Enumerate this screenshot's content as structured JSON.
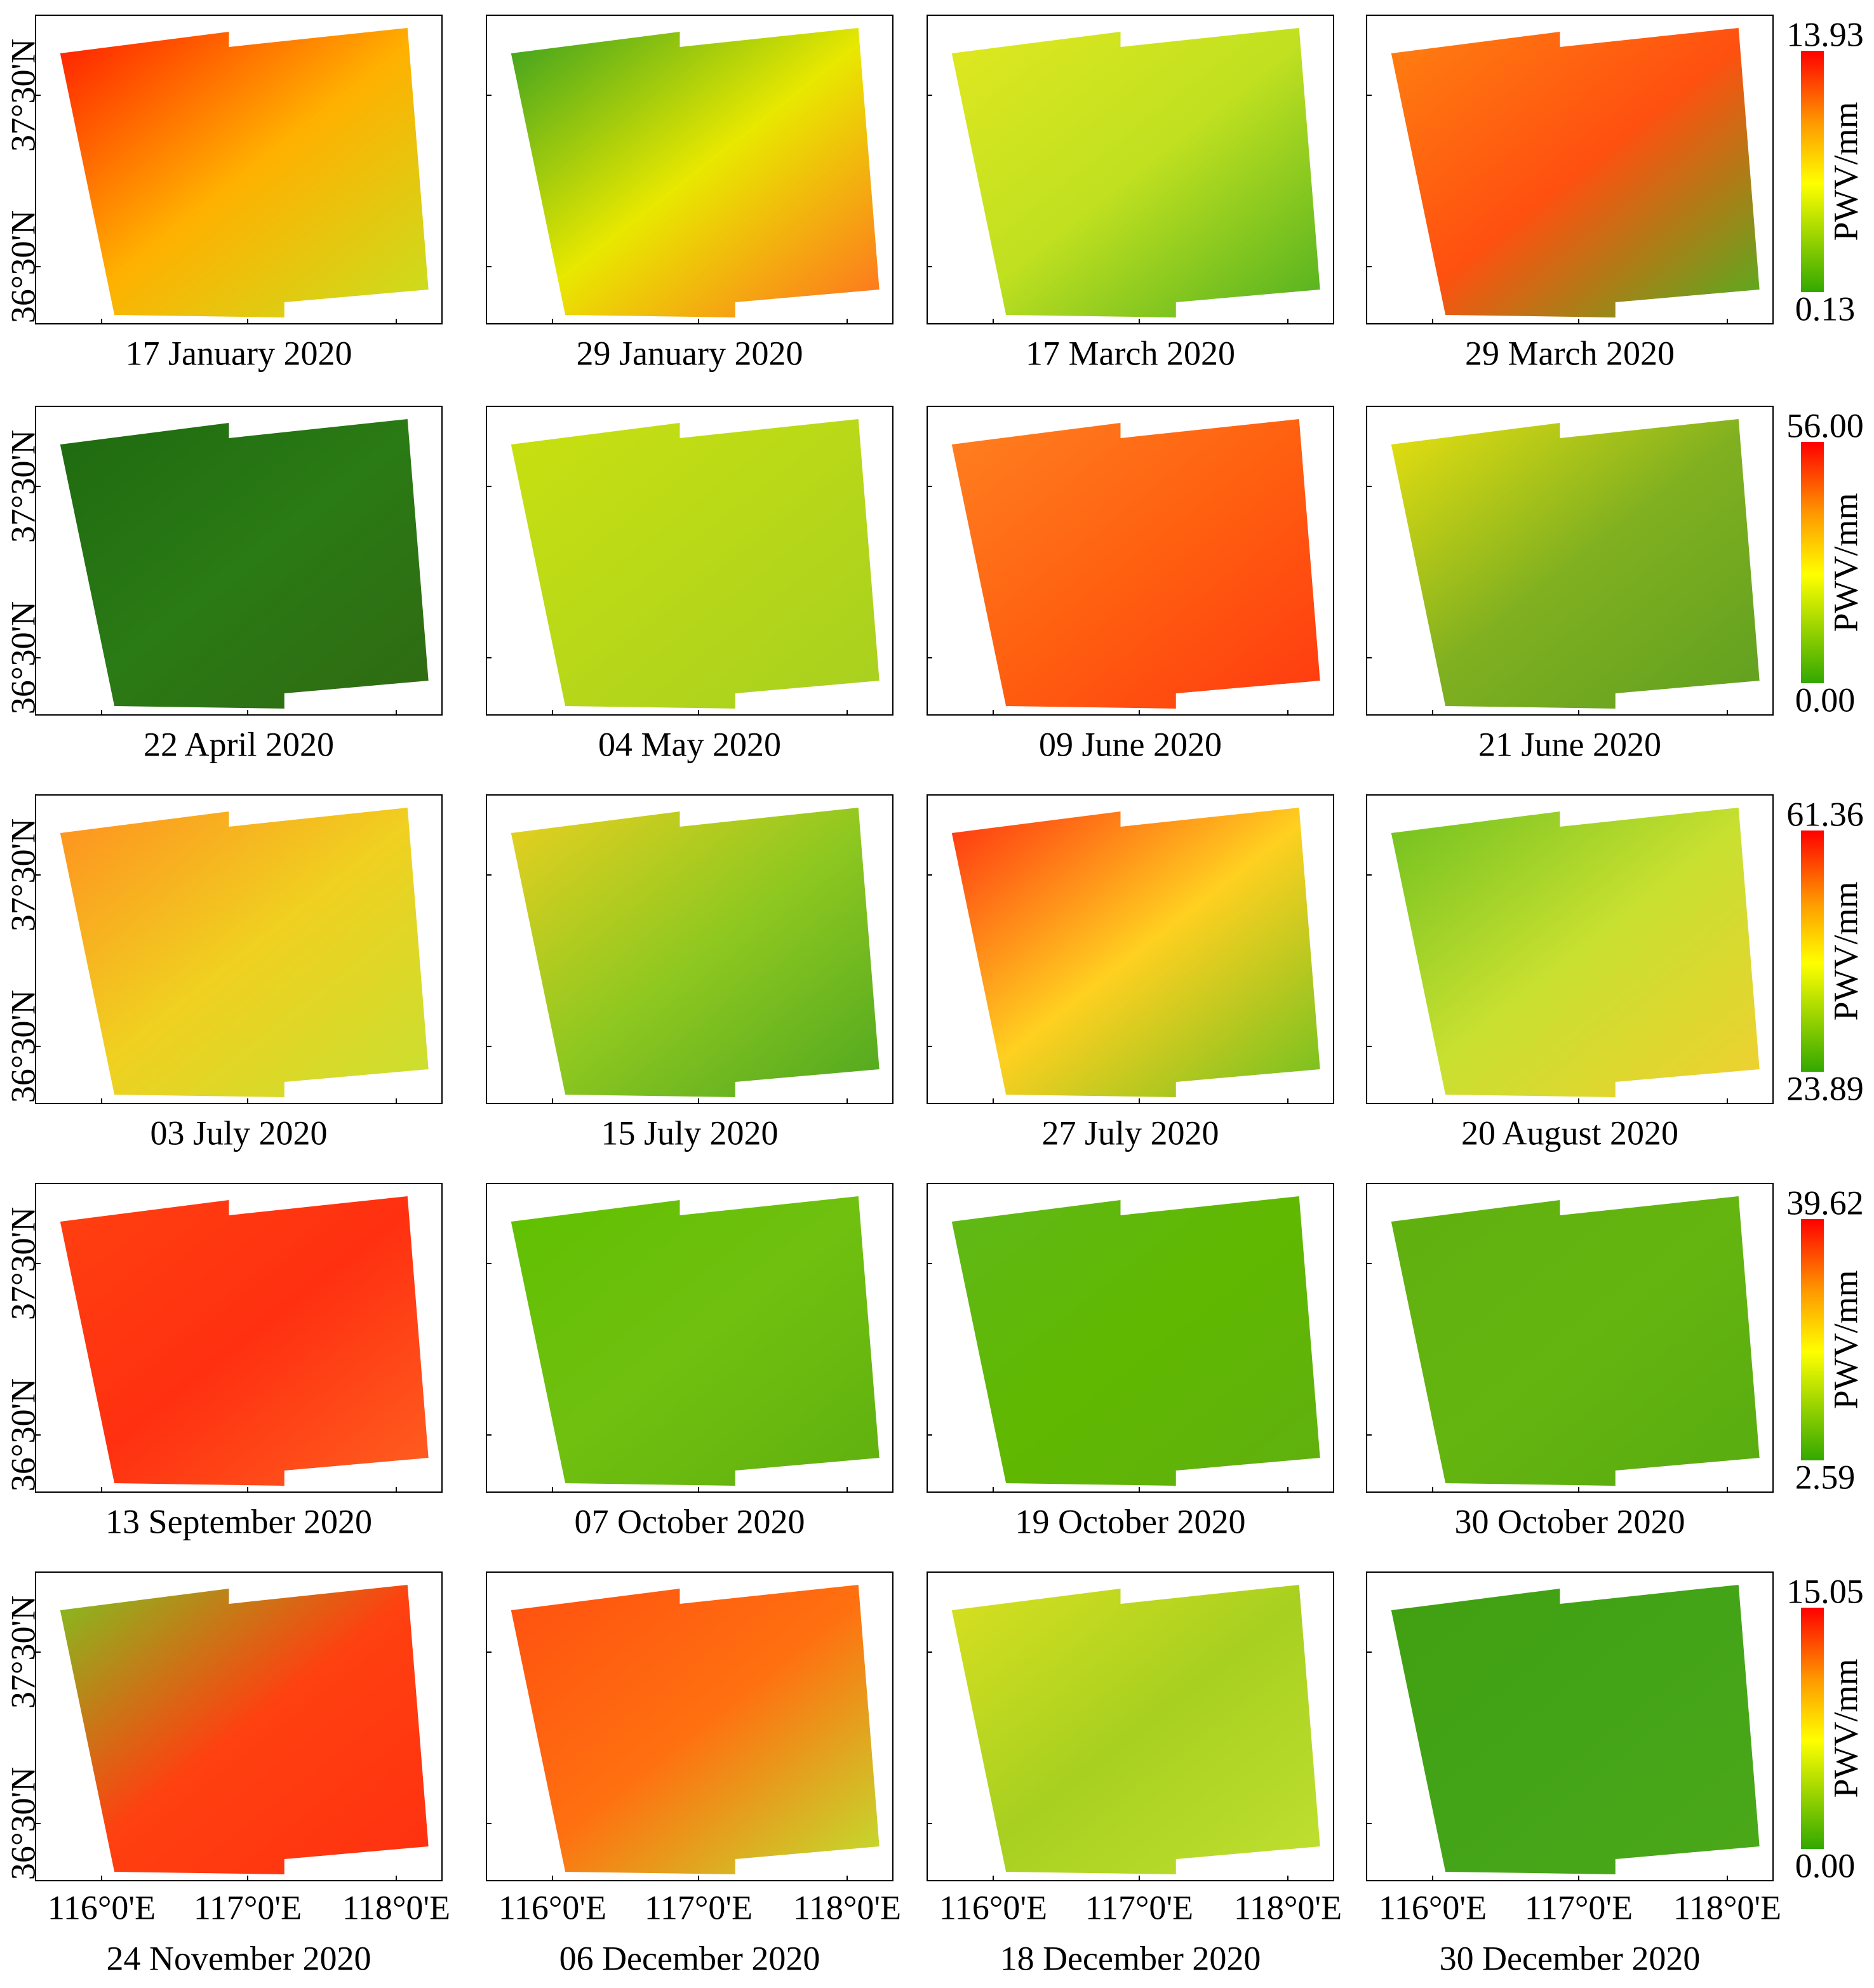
{
  "panels": [
    {
      "date": "17 January 2020",
      "colors": [
        "#ff1a00",
        "#ffb000",
        "#c8e020"
      ]
    },
    {
      "date": "29 January 2020",
      "colors": [
        "#3aa020",
        "#e8e800",
        "#ff7020"
      ]
    },
    {
      "date": "17 March 2020",
      "colors": [
        "#e0e820",
        "#c0e020",
        "#50b020"
      ]
    },
    {
      "date": "29 March 2020",
      "colors": [
        "#ff8010",
        "#ff5010",
        "#50b020"
      ]
    },
    {
      "date": "22 April 2020",
      "colors": [
        "#1f6a10",
        "#2a7a15",
        "#306a12"
      ]
    },
    {
      "date": "04 May 2020",
      "colors": [
        "#c8e010",
        "#b8d818",
        "#a8d020"
      ]
    },
    {
      "date": "09 June 2020",
      "colors": [
        "#ff8020",
        "#ff6010",
        "#ff3a10"
      ]
    },
    {
      "date": "21 June 2020",
      "colors": [
        "#e8e010",
        "#80b020",
        "#60a020"
      ]
    },
    {
      "date": "03 July 2020",
      "colors": [
        "#ff9020",
        "#f0d020",
        "#c8e030"
      ]
    },
    {
      "date": "15 July 2020",
      "colors": [
        "#e8d020",
        "#90c820",
        "#50a820"
      ]
    },
    {
      "date": "27 July 2020",
      "colors": [
        "#ff3010",
        "#ffd020",
        "#70c020"
      ]
    },
    {
      "date": "20 August 2020",
      "colors": [
        "#70c020",
        "#c8e030",
        "#f0d030"
      ]
    },
    {
      "date": "13 September 2020",
      "colors": [
        "#ff4010",
        "#ff3010",
        "#ff6020"
      ]
    },
    {
      "date": "07 October 2020",
      "colors": [
        "#60c000",
        "#70c010",
        "#60b010"
      ]
    },
    {
      "date": "19 October 2020",
      "colors": [
        "#60b818",
        "#60b800",
        "#60b010"
      ]
    },
    {
      "date": "30 October 2020",
      "colors": [
        "#5fb010",
        "#65b510",
        "#58ac10"
      ]
    },
    {
      "date": "24 November 2020",
      "colors": [
        "#80c020",
        "#ff4010",
        "#ff3010"
      ]
    },
    {
      "date": "06 December 2020",
      "colors": [
        "#ff5010",
        "#ff7010",
        "#c0e030"
      ]
    },
    {
      "date": "18 December 2020",
      "colors": [
        "#d8e020",
        "#a8d020",
        "#c0e030"
      ]
    },
    {
      "date": "30 December 2020",
      "colors": [
        "#40a010",
        "#44a418",
        "#4aa818"
      ]
    }
  ],
  "colorbars": [
    {
      "max": "13.93",
      "min": "0.13"
    },
    {
      "max": "56.00",
      "min": "0.00"
    },
    {
      "max": "61.36",
      "min": "23.89"
    },
    {
      "max": "39.62",
      "min": "2.59"
    },
    {
      "max": "15.05",
      "min": "0.00"
    }
  ],
  "colorbar_label": "PWV/mm",
  "lat_labels": [
    "37°30'N",
    "36°30'N"
  ],
  "lon_labels": [
    "116°0'E",
    "117°0'E",
    "118°0'E"
  ]
}
